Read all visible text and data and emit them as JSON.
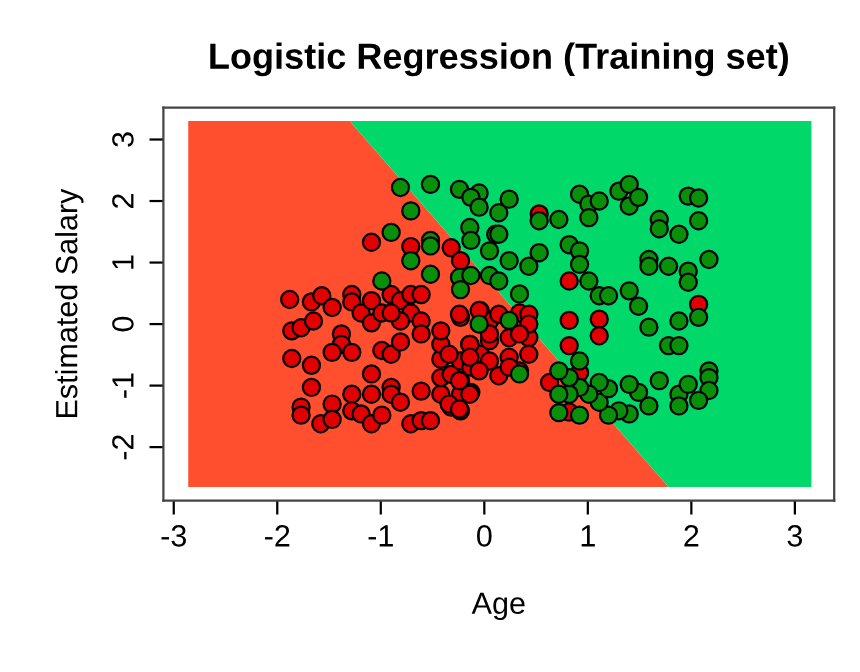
{
  "chart_data": {
    "type": "scatter",
    "title": "Logistic Regression (Training set)",
    "xlabel": "Age",
    "ylabel": "Estimated Salary",
    "xlim": [
      -3.1,
      3.38
    ],
    "ylim": [
      -2.87,
      3.52
    ],
    "xticks": [
      -3,
      -2,
      -1,
      0,
      1,
      2,
      3
    ],
    "yticks": [
      -2,
      -1,
      0,
      1,
      2,
      3
    ],
    "grid": false,
    "legend": false,
    "series": [
      {
        "type": "area",
        "color": "#ff4f2f",
        "x": [
          -2.86,
          -2.86,
          -1.3,
          1.78
        ],
        "values": [
          -2.65,
          3.3,
          3.3,
          -2.65
        ]
      },
      {
        "type": "area",
        "color": "#00d86a",
        "x": [
          -1.3,
          3.16,
          3.16,
          1.78
        ],
        "values": [
          3.3,
          3.3,
          -2.65,
          -2.65
        ]
      },
      {
        "marker": "circle",
        "color": "#e00000",
        "x": [
          -1.88,
          -1.86,
          -1.77,
          -1.67,
          -1.65,
          -1.57,
          -1.47,
          -1.38,
          -1.38,
          -1.47,
          -1.28,
          -1.86,
          -1.67,
          -1.67,
          -1.77,
          -1.77,
          -1.58,
          -1.47,
          -1.47,
          -1.28,
          -1.28,
          -1.19,
          -1.09,
          -1.09,
          -0.99,
          -0.9,
          -0.9,
          -0.81,
          -0.71,
          -0.61,
          -0.52,
          -0.61,
          -0.42,
          -0.32,
          -0.23,
          -0.23,
          -0.13,
          -0.42,
          -0.32,
          -0.23,
          -0.42,
          -0.42,
          -0.42,
          -0.23,
          -0.13,
          -0.04,
          0.05,
          -0.14,
          -0.23,
          -0.04,
          0.05,
          -0.99,
          -0.9,
          -0.81,
          -1.09,
          -1.09,
          -0.71,
          -0.32,
          -0.23,
          -1.28,
          -1.28,
          -1.19,
          -1.09,
          -1.09,
          -0.99,
          -0.9,
          -0.81,
          -0.71,
          -0.71,
          -0.61,
          -0.61,
          -0.61,
          -0.81,
          -0.9,
          0.53,
          0.82,
          0.82,
          1.11,
          1.11,
          0.82,
          2.07,
          0.63,
          0.92,
          0.82,
          -0.24,
          -0.05,
          0.14,
          0.34,
          0.43,
          0.43,
          0.24,
          0.05,
          -0.14,
          -0.34,
          -0.14,
          0.05,
          0.24,
          0.43,
          0.34,
          0.14,
          -0.05,
          -0.24,
          -0.14,
          -0.34,
          -0.24,
          0.24,
          0.43,
          0.34
        ],
        "values": [
          0.4,
          -0.11,
          -0.06,
          0.36,
          0.05,
          0.46,
          0.27,
          -0.16,
          -0.33,
          -0.46,
          -0.46,
          -0.56,
          -0.67,
          -1.03,
          -1.35,
          -1.48,
          -1.62,
          -1.3,
          -1.55,
          -1.14,
          -1.41,
          -1.46,
          -1.62,
          -1.14,
          -1.48,
          -1.03,
          -1.14,
          -1.27,
          -1.62,
          -1.57,
          -1.57,
          -1.09,
          -1.14,
          -1.35,
          -1.41,
          -1.14,
          -1.11,
          -0.87,
          -0.82,
          -0.92,
          -0.57,
          -0.33,
          -0.11,
          -0.6,
          -0.7,
          -0.49,
          -0.27,
          -0.33,
          0.11,
          0.22,
          0.05,
          -0.43,
          -0.49,
          -0.29,
          -0.81,
          1.33,
          1.26,
          1.24,
          1.03,
          0.48,
          0.36,
          0.18,
          0.38,
          0.02,
          0.18,
          0.48,
          0.38,
          0.48,
          0.18,
          0.48,
          0.05,
          -0.16,
          0.05,
          0.18,
          1.79,
          0.7,
          0.06,
          0.08,
          -0.19,
          -0.35,
          0.32,
          -0.95,
          -0.79,
          -1.43,
          0.16,
          0.22,
          0.16,
          0.18,
          0.16,
          -0.22,
          -0.22,
          -0.16,
          -0.33,
          -0.49,
          -0.54,
          -0.6,
          -0.54,
          -0.49,
          -0.76,
          -0.84,
          -0.76,
          -0.92,
          -1.14,
          -1.3,
          -1.38,
          -0.7,
          0.0,
          -0.16
        ]
      },
      {
        "marker": "circle",
        "color": "#0a8f0a",
        "x": [
          -0.81,
          -0.52,
          -0.24,
          -0.05,
          -0.13,
          -0.05,
          -0.71,
          -0.14,
          -0.13,
          -0.52,
          -0.52,
          -0.9,
          -0.71,
          -0.52,
          -0.99,
          -0.24,
          -0.13,
          -0.23,
          0.05,
          0.11,
          0.14,
          0.24,
          0.14,
          0.05,
          0.24,
          0.43,
          0.53,
          0.14,
          0.34,
          0.24,
          -0.05,
          0.72,
          0.53,
          0.92,
          1.01,
          1.01,
          1.11,
          1.3,
          1.4,
          1.4,
          1.49,
          0.82,
          0.92,
          0.92,
          1.01,
          1.11,
          1.2,
          1.4,
          1.49,
          1.59,
          1.59,
          1.59,
          1.69,
          1.69,
          1.88,
          1.97,
          2.07,
          2.07,
          1.78,
          1.97,
          1.97,
          2.17,
          1.88,
          2.07,
          1.78,
          1.88,
          2.17,
          2.17,
          2.17,
          2.07,
          1.88,
          1.88,
          1.97,
          1.69,
          1.49,
          1.4,
          1.59,
          1.4,
          1.3,
          1.2,
          1.11,
          1.2,
          1.11,
          1.01,
          0.92,
          0.82,
          0.72,
          0.72,
          0.92,
          0.82,
          0.72,
          0.92,
          0.34
        ],
        "values": [
          2.22,
          2.27,
          2.19,
          2.13,
          2.06,
          1.9,
          1.84,
          1.57,
          1.36,
          1.36,
          1.27,
          1.49,
          1.03,
          0.81,
          0.7,
          0.76,
          0.79,
          0.56,
          0.79,
          1.46,
          1.81,
          2.03,
          1.46,
          1.19,
          1.03,
          0.94,
          1.16,
          0.7,
          0.49,
          0.06,
          0.0,
          1.7,
          1.68,
          2.11,
          1.95,
          1.73,
          2.0,
          2.16,
          2.27,
          1.92,
          2.06,
          1.29,
          1.19,
          0.97,
          0.7,
          0.46,
          0.46,
          0.54,
          0.29,
          -0.05,
          1.05,
          0.94,
          1.7,
          1.55,
          1.46,
          2.08,
          2.05,
          1.68,
          0.94,
          0.86,
          0.68,
          1.05,
          0.05,
          0.11,
          -0.35,
          -0.35,
          -0.76,
          -0.87,
          -1.08,
          -1.24,
          -1.14,
          -1.33,
          -0.98,
          -0.92,
          -1.11,
          -0.98,
          -1.33,
          -1.46,
          -1.41,
          -1.48,
          -1.27,
          -1.05,
          -0.95,
          -1.14,
          -1.03,
          -1.14,
          -1.14,
          -1.44,
          -1.48,
          -0.87,
          -0.76,
          -0.6,
          -0.81
        ]
      }
    ]
  }
}
